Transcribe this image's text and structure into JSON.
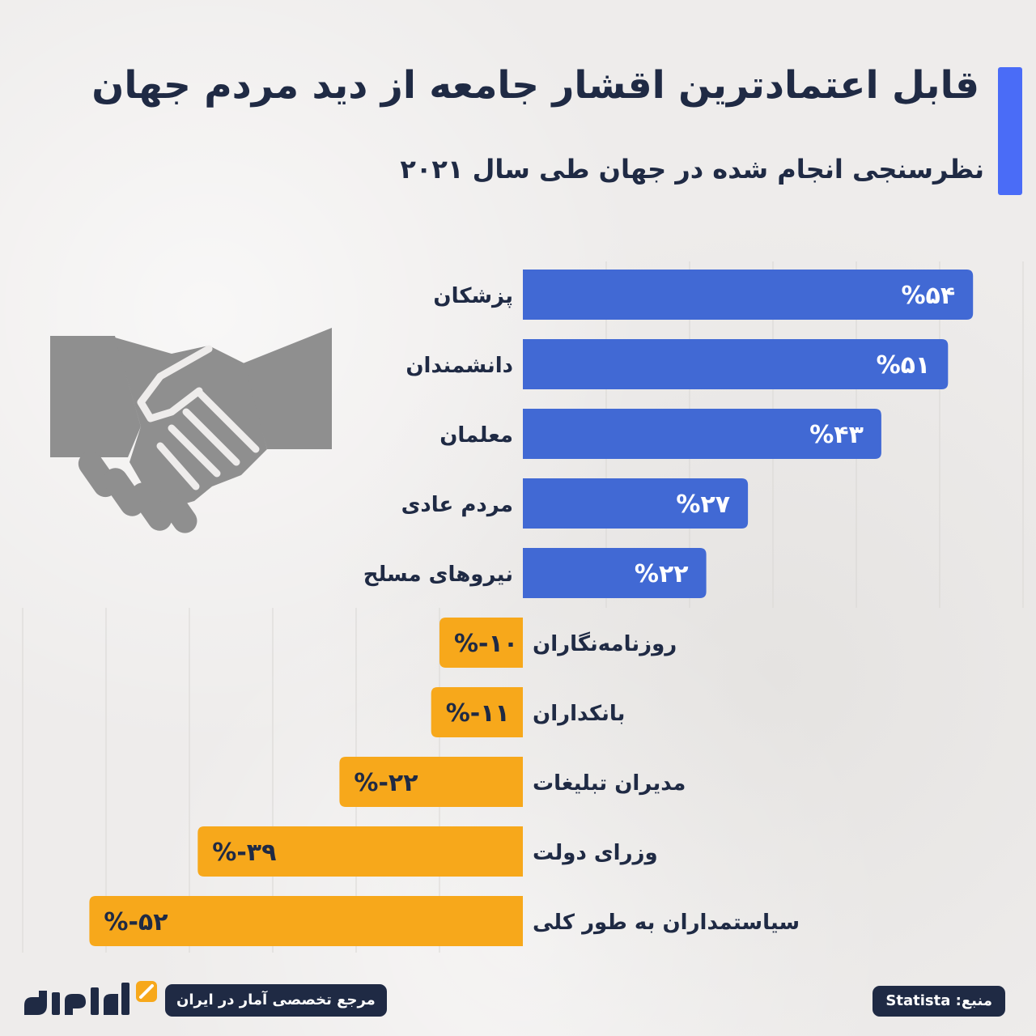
{
  "header": {
    "title": "قابل اعتمادترین اقشار جامعه از دید مردم جهان",
    "subtitle": "نظرسنجی انجام شده در جهان طی سال ۲۰۲۱"
  },
  "colors": {
    "positive": "#4169d4",
    "negative": "#f7a81b",
    "accent": "#4a6cf7",
    "navy": "#1f2a44",
    "icon": "#8f8f8f"
  },
  "chart_data": {
    "type": "bar",
    "orientation": "horizontal",
    "title": "قابل اعتمادترین اقشار جامعه از دید مردم جهان",
    "subtitle": "نظرسنجی انجام شده در جهان طی سال ۲۰۲۱",
    "categories": [
      "پزشکان",
      "دانشمندان",
      "معلمان",
      "مردم عادی",
      "نیروهای مسلح",
      "روزنامه‌نگاران",
      "بانکداران",
      "مدیران تبلیغات",
      "وزرای دولت",
      "سیاستمداران به طور کلی"
    ],
    "values": [
      54,
      51,
      43,
      27,
      22,
      -10,
      -11,
      -22,
      -39,
      -52
    ],
    "value_labels": [
      "%۵۴",
      "%۵۱",
      "%۴۳",
      "%۲۷",
      "%۲۲",
      "%-۱۰",
      "%-۱۱",
      "%-۲۲",
      "%-۳۹",
      "%-۵۲"
    ],
    "xlim": [
      -52,
      60
    ],
    "grid": true,
    "legend": "none"
  },
  "footer": {
    "source": "منبع: Statista",
    "reference": "مرجع تخصصی آمار در ایران",
    "logo_text": "آمارفکت"
  }
}
